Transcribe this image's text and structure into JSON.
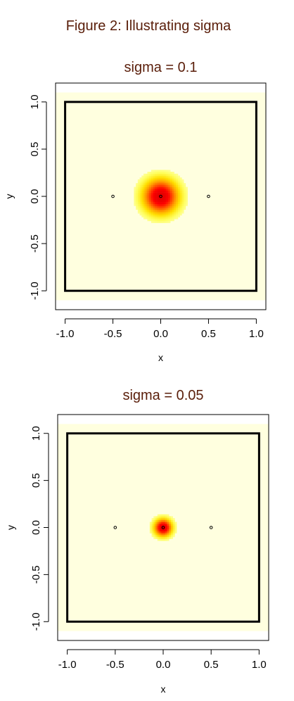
{
  "figure_title": "Figure 2: Illustrating sigma",
  "chart_data": [
    {
      "type": "heatmap",
      "title": "sigma  = 0.1",
      "sigma": 0.1,
      "xlabel": "x",
      "ylabel": "y",
      "xlim": [
        -1.1,
        1.1
      ],
      "ylim": [
        -1.2,
        1.2
      ],
      "xticks": [
        -1.0,
        -0.5,
        0.0,
        0.5,
        1.0
      ],
      "yticks": [
        -1.0,
        -0.5,
        0.0,
        0.5,
        1.0
      ],
      "xtick_labels": [
        "-1.0",
        "-0.5",
        "0.0",
        "0.5",
        "1.0"
      ],
      "ytick_labels": [
        "-1.0",
        "-0.5",
        "0.0",
        "0.5",
        "1.0"
      ],
      "heat_extent": [
        -1.1,
        1.1,
        -1.1,
        1.1
      ],
      "center": [
        0.0,
        0.0
      ],
      "square": [
        -1.0,
        1.0,
        -1.0,
        1.0
      ],
      "points": [
        [
          -0.5,
          0.0
        ],
        [
          0.0,
          0.0
        ],
        [
          0.5,
          0.0
        ]
      ]
    },
    {
      "type": "heatmap",
      "title": "sigma = 0.05",
      "sigma": 0.05,
      "xlabel": "x",
      "ylabel": "y",
      "xlim": [
        -1.1,
        1.1
      ],
      "ylim": [
        -1.2,
        1.2
      ],
      "xticks": [
        -1.0,
        -0.5,
        0.0,
        0.5,
        1.0
      ],
      "yticks": [
        -1.0,
        -0.5,
        0.0,
        0.5,
        1.0
      ],
      "xtick_labels": [
        "-1.0",
        "-0.5",
        "0.0",
        "0.5",
        "1.0"
      ],
      "ytick_labels": [
        "-1.0",
        "-0.5",
        "0.0",
        "0.5",
        "1.0"
      ],
      "heat_extent": [
        -1.1,
        1.1,
        -1.1,
        1.1
      ],
      "center": [
        0.0,
        0.0
      ],
      "square": [
        -1.0,
        1.0,
        -1.0,
        1.0
      ],
      "points": [
        [
          -0.5,
          0.0
        ],
        [
          0.0,
          0.0
        ],
        [
          0.5,
          0.0
        ]
      ]
    }
  ],
  "colors": {
    "title": "#5a1e0a",
    "background_heat": "#ffffdf",
    "heat_ramp": [
      "#ffffdf",
      "#ffff60",
      "#ffe000",
      "#ffa000",
      "#ff5000",
      "#ff0000",
      "#e00000"
    ]
  }
}
